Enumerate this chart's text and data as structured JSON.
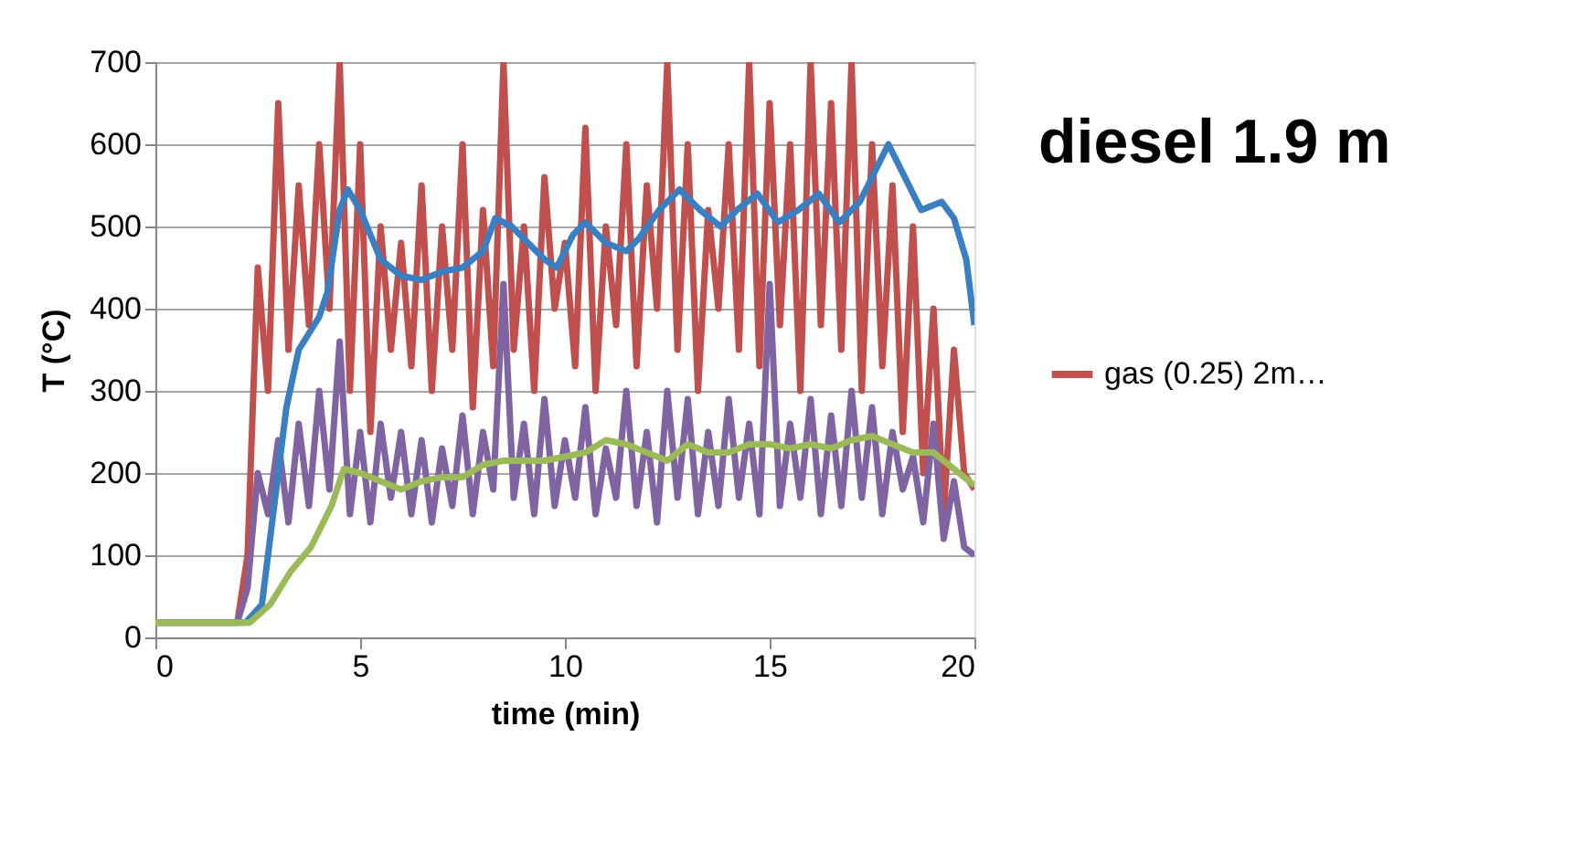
{
  "chart_data": {
    "type": "line",
    "title": "diesel 1.9 m",
    "xlabel": "time (min)",
    "ylabel": "T (°C)",
    "xlim": [
      0,
      20
    ],
    "xticks": [
      0,
      5,
      10,
      15,
      20
    ],
    "ylim": [
      0,
      700
    ],
    "yticks": [
      0,
      100,
      200,
      300,
      400,
      500,
      600,
      700
    ],
    "grid": "y",
    "legend": "right",
    "marker": "none",
    "line_style": "solid",
    "series": [
      {
        "name": "gas (0.25) 2m…",
        "color": "#c0504d",
        "x": [
          0,
          2,
          2.25,
          2.5,
          2.75,
          3,
          3.25,
          3.5,
          3.75,
          4,
          4.25,
          4.5,
          4.75,
          5,
          5.25,
          5.5,
          5.75,
          6,
          6.25,
          6.5,
          6.75,
          7,
          7.25,
          7.5,
          7.75,
          8,
          8.25,
          8.5,
          8.75,
          9,
          9.25,
          9.5,
          9.75,
          10,
          10.25,
          10.5,
          10.75,
          11,
          11.25,
          11.5,
          11.75,
          12,
          12.25,
          12.5,
          12.75,
          13,
          13.25,
          13.5,
          13.75,
          14,
          14.25,
          14.5,
          14.75,
          15,
          15.25,
          15.5,
          15.75,
          16,
          16.25,
          16.5,
          16.75,
          17,
          17.25,
          17.5,
          17.75,
          18,
          18.25,
          18.5,
          18.75,
          19,
          19.25,
          19.5,
          19.75,
          20
        ],
        "values": [
          18,
          18,
          100,
          450,
          300,
          650,
          350,
          550,
          380,
          600,
          400,
          700,
          300,
          600,
          250,
          500,
          350,
          480,
          330,
          550,
          300,
          500,
          350,
          600,
          280,
          520,
          330,
          700,
          350,
          500,
          300,
          560,
          400,
          480,
          330,
          620,
          300,
          500,
          380,
          600,
          330,
          550,
          400,
          700,
          350,
          600,
          300,
          520,
          400,
          600,
          350,
          700,
          330,
          650,
          380,
          600,
          300,
          700,
          380,
          650,
          350,
          700,
          300,
          600,
          330,
          550,
          250,
          500,
          200,
          400,
          150,
          350,
          200,
          180
        ]
      },
      {
        "color": "#8064a2",
        "x": [
          0,
          2,
          2.25,
          2.5,
          2.75,
          3,
          3.25,
          3.5,
          3.75,
          4,
          4.25,
          4.5,
          4.75,
          5,
          5.25,
          5.5,
          5.75,
          6,
          6.25,
          6.5,
          6.75,
          7,
          7.25,
          7.5,
          7.75,
          8,
          8.25,
          8.5,
          8.75,
          9,
          9.25,
          9.5,
          9.75,
          10,
          10.25,
          10.5,
          10.75,
          11,
          11.25,
          11.5,
          11.75,
          12,
          12.25,
          12.5,
          12.75,
          13,
          13.25,
          13.5,
          13.75,
          14,
          14.25,
          14.5,
          14.75,
          15,
          15.25,
          15.5,
          15.75,
          16,
          16.25,
          16.5,
          16.75,
          17,
          17.25,
          17.5,
          17.75,
          18,
          18.25,
          18.5,
          18.75,
          19,
          19.25,
          19.5,
          19.75,
          20
        ],
        "values": [
          18,
          18,
          60,
          200,
          150,
          240,
          140,
          260,
          160,
          300,
          180,
          360,
          150,
          250,
          140,
          260,
          170,
          250,
          150,
          240,
          140,
          230,
          160,
          270,
          150,
          250,
          180,
          430,
          170,
          260,
          150,
          290,
          160,
          240,
          170,
          280,
          150,
          230,
          170,
          300,
          160,
          250,
          140,
          300,
          170,
          290,
          150,
          250,
          160,
          290,
          170,
          260,
          150,
          430,
          160,
          260,
          170,
          290,
          150,
          270,
          160,
          300,
          170,
          280,
          150,
          250,
          180,
          220,
          140,
          260,
          120,
          190,
          110,
          100
        ]
      },
      {
        "color": "#3a7fc1",
        "x": [
          0,
          2.2,
          2.6,
          3.0,
          3.2,
          3.5,
          4.0,
          4.2,
          4.5,
          4.7,
          5.0,
          5.5,
          6,
          6.5,
          7,
          7.5,
          8,
          8.3,
          8.7,
          9.5,
          9.8,
          10.2,
          10.5,
          11,
          11.5,
          11.8,
          12.3,
          12.8,
          13.3,
          13.8,
          14.2,
          14.7,
          15.2,
          15.7,
          16.2,
          16.7,
          17.2,
          17.6,
          17.9,
          18.3,
          18.7,
          19.2,
          19.5,
          19.8,
          20
        ],
        "values": [
          18,
          18,
          40,
          200,
          280,
          350,
          390,
          420,
          520,
          545,
          520,
          460,
          440,
          435,
          445,
          450,
          470,
          510,
          500,
          460,
          450,
          490,
          505,
          480,
          470,
          485,
          520,
          545,
          520,
          500,
          520,
          540,
          505,
          520,
          540,
          505,
          530,
          570,
          600,
          560,
          520,
          530,
          510,
          460,
          380
        ]
      },
      {
        "color": "#9bbb59",
        "x": [
          0,
          2.3,
          2.8,
          3.3,
          3.8,
          4.3,
          4.6,
          5,
          5.5,
          6,
          6.5,
          7,
          7.5,
          8,
          8.5,
          9,
          9.5,
          10,
          10.5,
          11,
          11.5,
          12,
          12.5,
          13,
          13.5,
          14,
          14.5,
          15,
          15.5,
          16,
          16.5,
          17,
          17.5,
          18,
          18.5,
          19,
          19.5,
          20
        ],
        "values": [
          18,
          18,
          40,
          80,
          110,
          160,
          205,
          200,
          190,
          180,
          190,
          195,
          195,
          210,
          215,
          215,
          215,
          220,
          225,
          240,
          235,
          225,
          215,
          235,
          225,
          225,
          235,
          235,
          230,
          235,
          230,
          240,
          245,
          235,
          225,
          225,
          205,
          185
        ]
      }
    ]
  }
}
